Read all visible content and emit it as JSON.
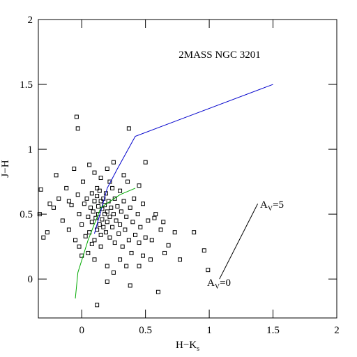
{
  "chart_data": {
    "type": "scatter",
    "title": "2MASS NGC 3201",
    "xlabel": {
      "text": "H−K",
      "sub": "s"
    },
    "ylabel": "J−H",
    "xlim": [
      -0.34,
      2
    ],
    "ylim": [
      -0.3,
      2
    ],
    "xticks": [
      0,
      0.5,
      1,
      1.5,
      2
    ],
    "yticks": [
      0,
      0.5,
      1,
      1.5,
      2
    ],
    "x": [
      -0.04,
      -0.03,
      0.37,
      0.5,
      0.96,
      0.99,
      0.88,
      0.77,
      0.58,
      0.57,
      0.64,
      0.73,
      0.65,
      0.6,
      0.38,
      0.12,
      0.2,
      -0.32,
      -0.33,
      -0.3,
      -0.27,
      -0.25,
      -0.22,
      -0.2,
      -0.18,
      -0.15,
      -0.12,
      -0.1,
      -0.08,
      -0.06,
      -0.05,
      -0.03,
      -0.02,
      0,
      0.01,
      0.02,
      0.03,
      0.04,
      0.05,
      0.06,
      0.06,
      0.07,
      0.08,
      0.08,
      0.09,
      0.1,
      0.1,
      0.11,
      0.12,
      0.12,
      0.13,
      0.13,
      0.14,
      0.14,
      0.15,
      0.15,
      0.16,
      0.16,
      0.17,
      0.17,
      0.18,
      0.18,
      0.19,
      0.19,
      0.2,
      0.2,
      0.21,
      0.22,
      0.22,
      0.23,
      0.24,
      0.24,
      0.25,
      0.26,
      0.26,
      0.27,
      0.28,
      0.29,
      0.3,
      0.3,
      0.31,
      0.32,
      0.33,
      0.34,
      0.35,
      0.36,
      0.37,
      0.38,
      0.39,
      0.4,
      0.41,
      0.42,
      0.44,
      0.45,
      0.46,
      0.48,
      0.5,
      0.52,
      0.54,
      0.55,
      0.62,
      0.68,
      0.2,
      0.15,
      0.1,
      0.25,
      0.3,
      0.2,
      0.1,
      0.05,
      0,
      0.25,
      0.35,
      0.45,
      0.15,
      0.08,
      -0.02,
      -0.1,
      0.12,
      0.22,
      0.45,
      0.33,
      0.48
    ],
    "y": [
      1.25,
      1.16,
      1.16,
      0.9,
      0.22,
      0.07,
      0.36,
      0.15,
      0.5,
      0.47,
      0.44,
      0.36,
      0.2,
      -0.1,
      -0.05,
      -0.2,
      -0.02,
      0.69,
      0.5,
      0.32,
      0.36,
      0.58,
      0.55,
      0.8,
      0.62,
      0.45,
      0.7,
      0.38,
      0.57,
      0.85,
      0.3,
      0.65,
      0.5,
      0.42,
      0.75,
      0.58,
      0.33,
      0.62,
      0.48,
      0.88,
      0.36,
      0.55,
      0.66,
      0.44,
      0.52,
      0.6,
      0.3,
      0.47,
      0.64,
      0.38,
      0.56,
      0.5,
      0.42,
      0.68,
      0.6,
      0.34,
      0.54,
      0.46,
      0.62,
      0.4,
      0.57,
      0.5,
      0.66,
      0.36,
      0.52,
      0.44,
      0.6,
      0.48,
      0.32,
      0.55,
      0.7,
      0.4,
      0.5,
      0.62,
      0.28,
      0.45,
      0.56,
      0.35,
      0.68,
      0.42,
      0.52,
      0.25,
      0.6,
      0.38,
      0.48,
      0.75,
      0.3,
      0.55,
      0.2,
      0.44,
      0.62,
      0.34,
      0.5,
      0.28,
      0.4,
      0.58,
      0.32,
      0.45,
      0.15,
      0.3,
      0.38,
      0.26,
      0.85,
      0.78,
      0.82,
      0.9,
      0.15,
      0.1,
      0.15,
      0.2,
      0.18,
      0.05,
      0.1,
      0.1,
      0.25,
      0.27,
      0.25,
      0.6,
      0.7,
      0.75,
      0.72,
      0.8,
      0.18
    ],
    "lines": [
      {
        "color": "#0000cc",
        "x": [
          0.1,
          0.2,
          0.28,
          0.42,
          1.5
        ],
        "y": [
          0.35,
          0.7,
          0.85,
          1.1,
          1.5
        ]
      },
      {
        "color": "#00aa00",
        "x": [
          -0.05,
          -0.03,
          0.05,
          0.15,
          0.3,
          0.42
        ],
        "y": [
          -0.15,
          0.05,
          0.3,
          0.55,
          0.65,
          0.7
        ]
      },
      {
        "color": "#000000",
        "x": [
          1.08,
          1.38
        ],
        "y": [
          0,
          0.58
        ]
      }
    ],
    "annotations": [
      {
        "text": "A",
        "sub": "V",
        "rest": "=0"
      },
      {
        "text": "A",
        "sub": "V",
        "rest": "=5"
      }
    ]
  }
}
